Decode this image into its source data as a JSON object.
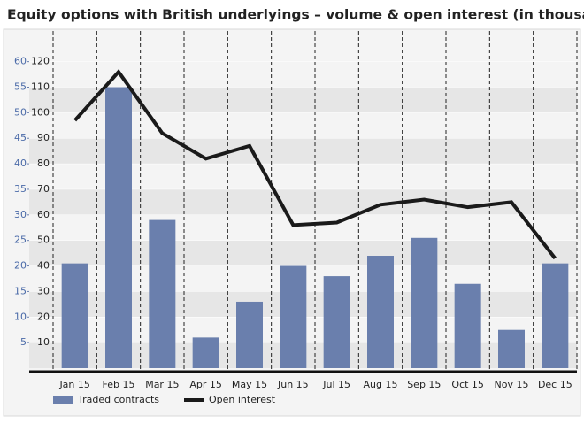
{
  "chart_data": {
    "type": "bar_line",
    "title": "Equity options with British underlyings – volume & open interest (in thousands)",
    "categories": [
      "Jan 15",
      "Feb 15",
      "Mar 15",
      "Apr 15",
      "May 15",
      "Jun 15",
      "Jul 15",
      "Aug 15",
      "Sep 15",
      "Oct 15",
      "Nov 15",
      "Dec 15"
    ],
    "series": [
      {
        "name": "Traded contracts",
        "type": "bar",
        "color": "#6a7fad",
        "axis": "y",
        "values": [
          20.5,
          55,
          29,
          6,
          13,
          20,
          18,
          22,
          25.5,
          16.5,
          7.5,
          20.5
        ]
      },
      {
        "name": "Open interest",
        "type": "line",
        "color": "#1a1a1a",
        "axis": "y2",
        "values": [
          97,
          116,
          92,
          82,
          87,
          56,
          57,
          64,
          66,
          63,
          65,
          43
        ]
      }
    ],
    "ylim": [
      0,
      66
    ],
    "yticks": [
      5,
      10,
      15,
      20,
      25,
      30,
      35,
      40,
      45,
      50,
      55,
      60
    ],
    "y2lim": [
      0,
      132
    ],
    "y2ticks": [
      10,
      20,
      30,
      40,
      50,
      60,
      70,
      80,
      90,
      100,
      110,
      120
    ],
    "grid": true
  }
}
